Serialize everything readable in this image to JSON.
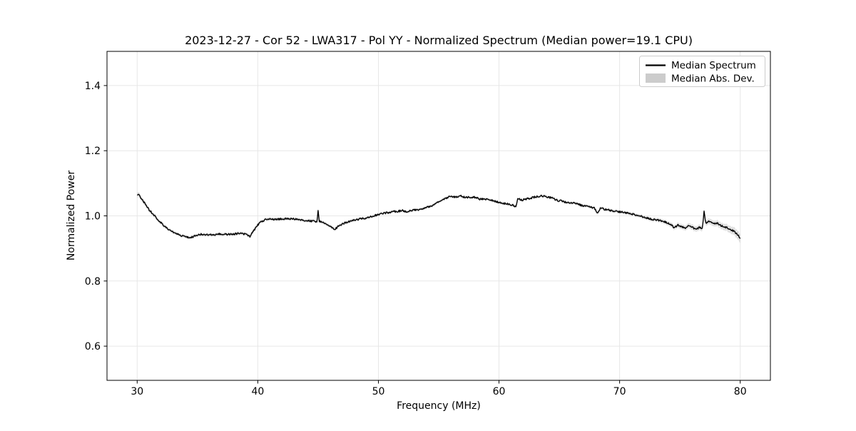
{
  "figure": {
    "background": "#ffffff"
  },
  "chart_data": {
    "type": "line",
    "title": "2023-12-27 - Cor 52 - LWA317 - Pol YY - Normalized Spectrum (Median power=19.1 CPU)",
    "xlabel": "Frequency (MHz)",
    "ylabel": "Normalized Power",
    "xlim": [
      27.5,
      82.5
    ],
    "ylim": [
      0.495,
      1.505
    ],
    "x_ticks": [
      30,
      40,
      50,
      60,
      70,
      80
    ],
    "x_tick_labels": [
      "30",
      "40",
      "50",
      "60",
      "70",
      "80"
    ],
    "y_ticks": [
      0.6,
      0.8,
      1.0,
      1.2,
      1.4
    ],
    "y_tick_labels": [
      "0.6",
      "0.8",
      "1.0",
      "1.2",
      "1.4"
    ],
    "grid": true,
    "legend": {
      "position": "upper right",
      "entries": [
        {
          "label": "Median Spectrum",
          "type": "line",
          "color": "#000000"
        },
        {
          "label": "Median Abs. Dev.",
          "type": "patch",
          "color": "#cccccc"
        }
      ]
    },
    "colors": {
      "line": "#000000",
      "band": "#c8c8c8",
      "grid": "#e7e7e7",
      "axis": "#000000",
      "legend_border": "#cccccc",
      "background": "#ffffff"
    },
    "series": [
      {
        "name": "Median Spectrum",
        "color": "#000000",
        "points": [
          [
            30.0,
            1.063
          ],
          [
            30.15,
            1.066
          ],
          [
            30.3,
            1.056
          ],
          [
            30.5,
            1.045
          ],
          [
            30.75,
            1.032
          ],
          [
            31.0,
            1.018
          ],
          [
            31.25,
            1.008
          ],
          [
            31.5,
            0.998
          ],
          [
            31.75,
            0.987
          ],
          [
            32.0,
            0.978
          ],
          [
            32.25,
            0.969
          ],
          [
            32.5,
            0.962
          ],
          [
            32.75,
            0.956
          ],
          [
            33.0,
            0.95
          ],
          [
            33.25,
            0.945
          ],
          [
            33.5,
            0.942
          ],
          [
            33.75,
            0.939
          ],
          [
            34.0,
            0.937
          ],
          [
            34.3,
            0.934
          ],
          [
            34.6,
            0.936
          ],
          [
            35.0,
            0.941
          ],
          [
            35.3,
            0.944
          ],
          [
            35.6,
            0.941
          ],
          [
            36.0,
            0.943
          ],
          [
            36.4,
            0.941
          ],
          [
            36.8,
            0.944
          ],
          [
            37.2,
            0.943
          ],
          [
            37.6,
            0.944
          ],
          [
            38.0,
            0.944
          ],
          [
            38.4,
            0.946
          ],
          [
            38.8,
            0.944
          ],
          [
            39.1,
            0.944
          ],
          [
            39.35,
            0.936
          ],
          [
            39.6,
            0.951
          ],
          [
            39.8,
            0.962
          ],
          [
            40.0,
            0.972
          ],
          [
            40.3,
            0.983
          ],
          [
            40.6,
            0.988
          ],
          [
            41.0,
            0.991
          ],
          [
            41.4,
            0.989
          ],
          [
            41.8,
            0.99
          ],
          [
            42.2,
            0.991
          ],
          [
            42.6,
            0.99
          ],
          [
            43.0,
            0.991
          ],
          [
            43.4,
            0.989
          ],
          [
            43.8,
            0.986
          ],
          [
            44.2,
            0.985
          ],
          [
            44.6,
            0.984
          ],
          [
            44.9,
            0.983
          ],
          [
            45.0,
            1.014
          ],
          [
            45.1,
            0.984
          ],
          [
            45.4,
            0.98
          ],
          [
            45.8,
            0.973
          ],
          [
            46.1,
            0.965
          ],
          [
            46.35,
            0.957
          ],
          [
            46.6,
            0.966
          ],
          [
            46.9,
            0.973
          ],
          [
            47.2,
            0.978
          ],
          [
            47.6,
            0.983
          ],
          [
            48.0,
            0.987
          ],
          [
            48.4,
            0.99
          ],
          [
            48.8,
            0.992
          ],
          [
            49.2,
            0.996
          ],
          [
            49.6,
            1.0
          ],
          [
            50.0,
            1.004
          ],
          [
            50.4,
            1.008
          ],
          [
            50.8,
            1.01
          ],
          [
            51.2,
            1.013
          ],
          [
            51.6,
            1.014
          ],
          [
            52.0,
            1.016
          ],
          [
            52.4,
            1.013
          ],
          [
            52.8,
            1.016
          ],
          [
            53.2,
            1.019
          ],
          [
            53.6,
            1.021
          ],
          [
            54.0,
            1.026
          ],
          [
            54.4,
            1.031
          ],
          [
            54.8,
            1.038
          ],
          [
            55.2,
            1.047
          ],
          [
            55.6,
            1.054
          ],
          [
            56.0,
            1.06
          ],
          [
            56.4,
            1.057
          ],
          [
            56.8,
            1.061
          ],
          [
            57.2,
            1.056
          ],
          [
            57.6,
            1.058
          ],
          [
            58.0,
            1.057
          ],
          [
            58.4,
            1.051
          ],
          [
            58.8,
            1.053
          ],
          [
            59.2,
            1.048
          ],
          [
            59.6,
            1.046
          ],
          [
            60.0,
            1.042
          ],
          [
            60.4,
            1.038
          ],
          [
            60.8,
            1.036
          ],
          [
            61.2,
            1.032
          ],
          [
            61.4,
            1.029
          ],
          [
            61.55,
            1.053
          ],
          [
            61.9,
            1.049
          ],
          [
            62.3,
            1.052
          ],
          [
            62.7,
            1.055
          ],
          [
            63.1,
            1.059
          ],
          [
            63.5,
            1.062
          ],
          [
            63.9,
            1.059
          ],
          [
            64.3,
            1.056
          ],
          [
            64.7,
            1.049
          ],
          [
            65.1,
            1.046
          ],
          [
            65.5,
            1.042
          ],
          [
            65.9,
            1.038
          ],
          [
            66.3,
            1.04
          ],
          [
            66.7,
            1.034
          ],
          [
            67.1,
            1.03
          ],
          [
            67.5,
            1.028
          ],
          [
            67.9,
            1.025
          ],
          [
            68.15,
            1.007
          ],
          [
            68.4,
            1.023
          ],
          [
            68.8,
            1.02
          ],
          [
            69.2,
            1.017
          ],
          [
            69.6,
            1.014
          ],
          [
            70.0,
            1.012
          ],
          [
            70.4,
            1.01
          ],
          [
            70.8,
            1.007
          ],
          [
            71.2,
            1.004
          ],
          [
            71.6,
            1.0
          ],
          [
            72.0,
            0.996
          ],
          [
            72.4,
            0.992
          ],
          [
            72.8,
            0.989
          ],
          [
            73.2,
            0.987
          ],
          [
            73.6,
            0.983
          ],
          [
            74.0,
            0.978
          ],
          [
            74.3,
            0.972
          ],
          [
            74.55,
            0.963
          ],
          [
            74.8,
            0.972
          ],
          [
            75.1,
            0.968
          ],
          [
            75.45,
            0.962
          ],
          [
            75.7,
            0.97
          ],
          [
            76.0,
            0.966
          ],
          [
            76.35,
            0.957
          ],
          [
            76.6,
            0.965
          ],
          [
            76.85,
            0.961
          ],
          [
            77.0,
            1.013
          ],
          [
            77.15,
            0.977
          ],
          [
            77.45,
            0.983
          ],
          [
            77.75,
            0.975
          ],
          [
            78.05,
            0.978
          ],
          [
            78.35,
            0.971
          ],
          [
            78.7,
            0.967
          ],
          [
            79.0,
            0.962
          ],
          [
            79.3,
            0.956
          ],
          [
            79.6,
            0.949
          ],
          [
            79.8,
            0.942
          ],
          [
            80.0,
            0.931
          ]
        ]
      },
      {
        "name": "Median Abs. Dev.",
        "color": "#c8c8c8",
        "band_halfwidth_points": [
          [
            30,
            0.007
          ],
          [
            31,
            0.006
          ],
          [
            33,
            0.005
          ],
          [
            36,
            0.005
          ],
          [
            40,
            0.005
          ],
          [
            44,
            0.0045
          ],
          [
            46,
            0.005
          ],
          [
            48,
            0.0045
          ],
          [
            52,
            0.004
          ],
          [
            56,
            0.004
          ],
          [
            60,
            0.004
          ],
          [
            64,
            0.004
          ],
          [
            67,
            0.0045
          ],
          [
            70,
            0.005
          ],
          [
            72,
            0.0055
          ],
          [
            74,
            0.0065
          ],
          [
            75,
            0.0075
          ],
          [
            76,
            0.008
          ],
          [
            77,
            0.0085
          ],
          [
            78,
            0.009
          ],
          [
            79,
            0.0105
          ],
          [
            79.5,
            0.012
          ],
          [
            80,
            0.014
          ]
        ]
      }
    ]
  }
}
